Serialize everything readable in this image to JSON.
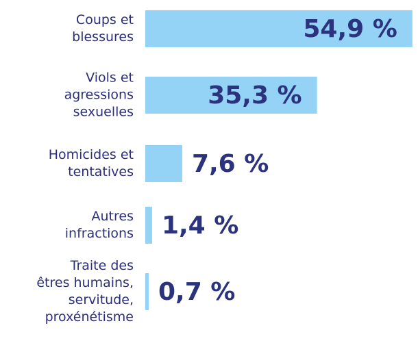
{
  "chart_data": {
    "type": "hbar",
    "categories": [
      [
        "Coups et",
        "blessures"
      ],
      [
        "Viols et",
        "agressions",
        "sexuelles"
      ],
      [
        "Homicides et",
        "tentatives"
      ],
      [
        "Autres",
        "infractions"
      ],
      [
        "Traite des",
        "êtres humains,",
        "servitude,",
        "proxénétisme"
      ]
    ],
    "values": [
      54.9,
      35.3,
      7.6,
      1.4,
      0.7
    ],
    "value_labels": [
      "54,9 %",
      "35,3 %",
      "7,6 %",
      "1,4 %",
      "0,7 %"
    ],
    "color": "#94d3f5"
  }
}
